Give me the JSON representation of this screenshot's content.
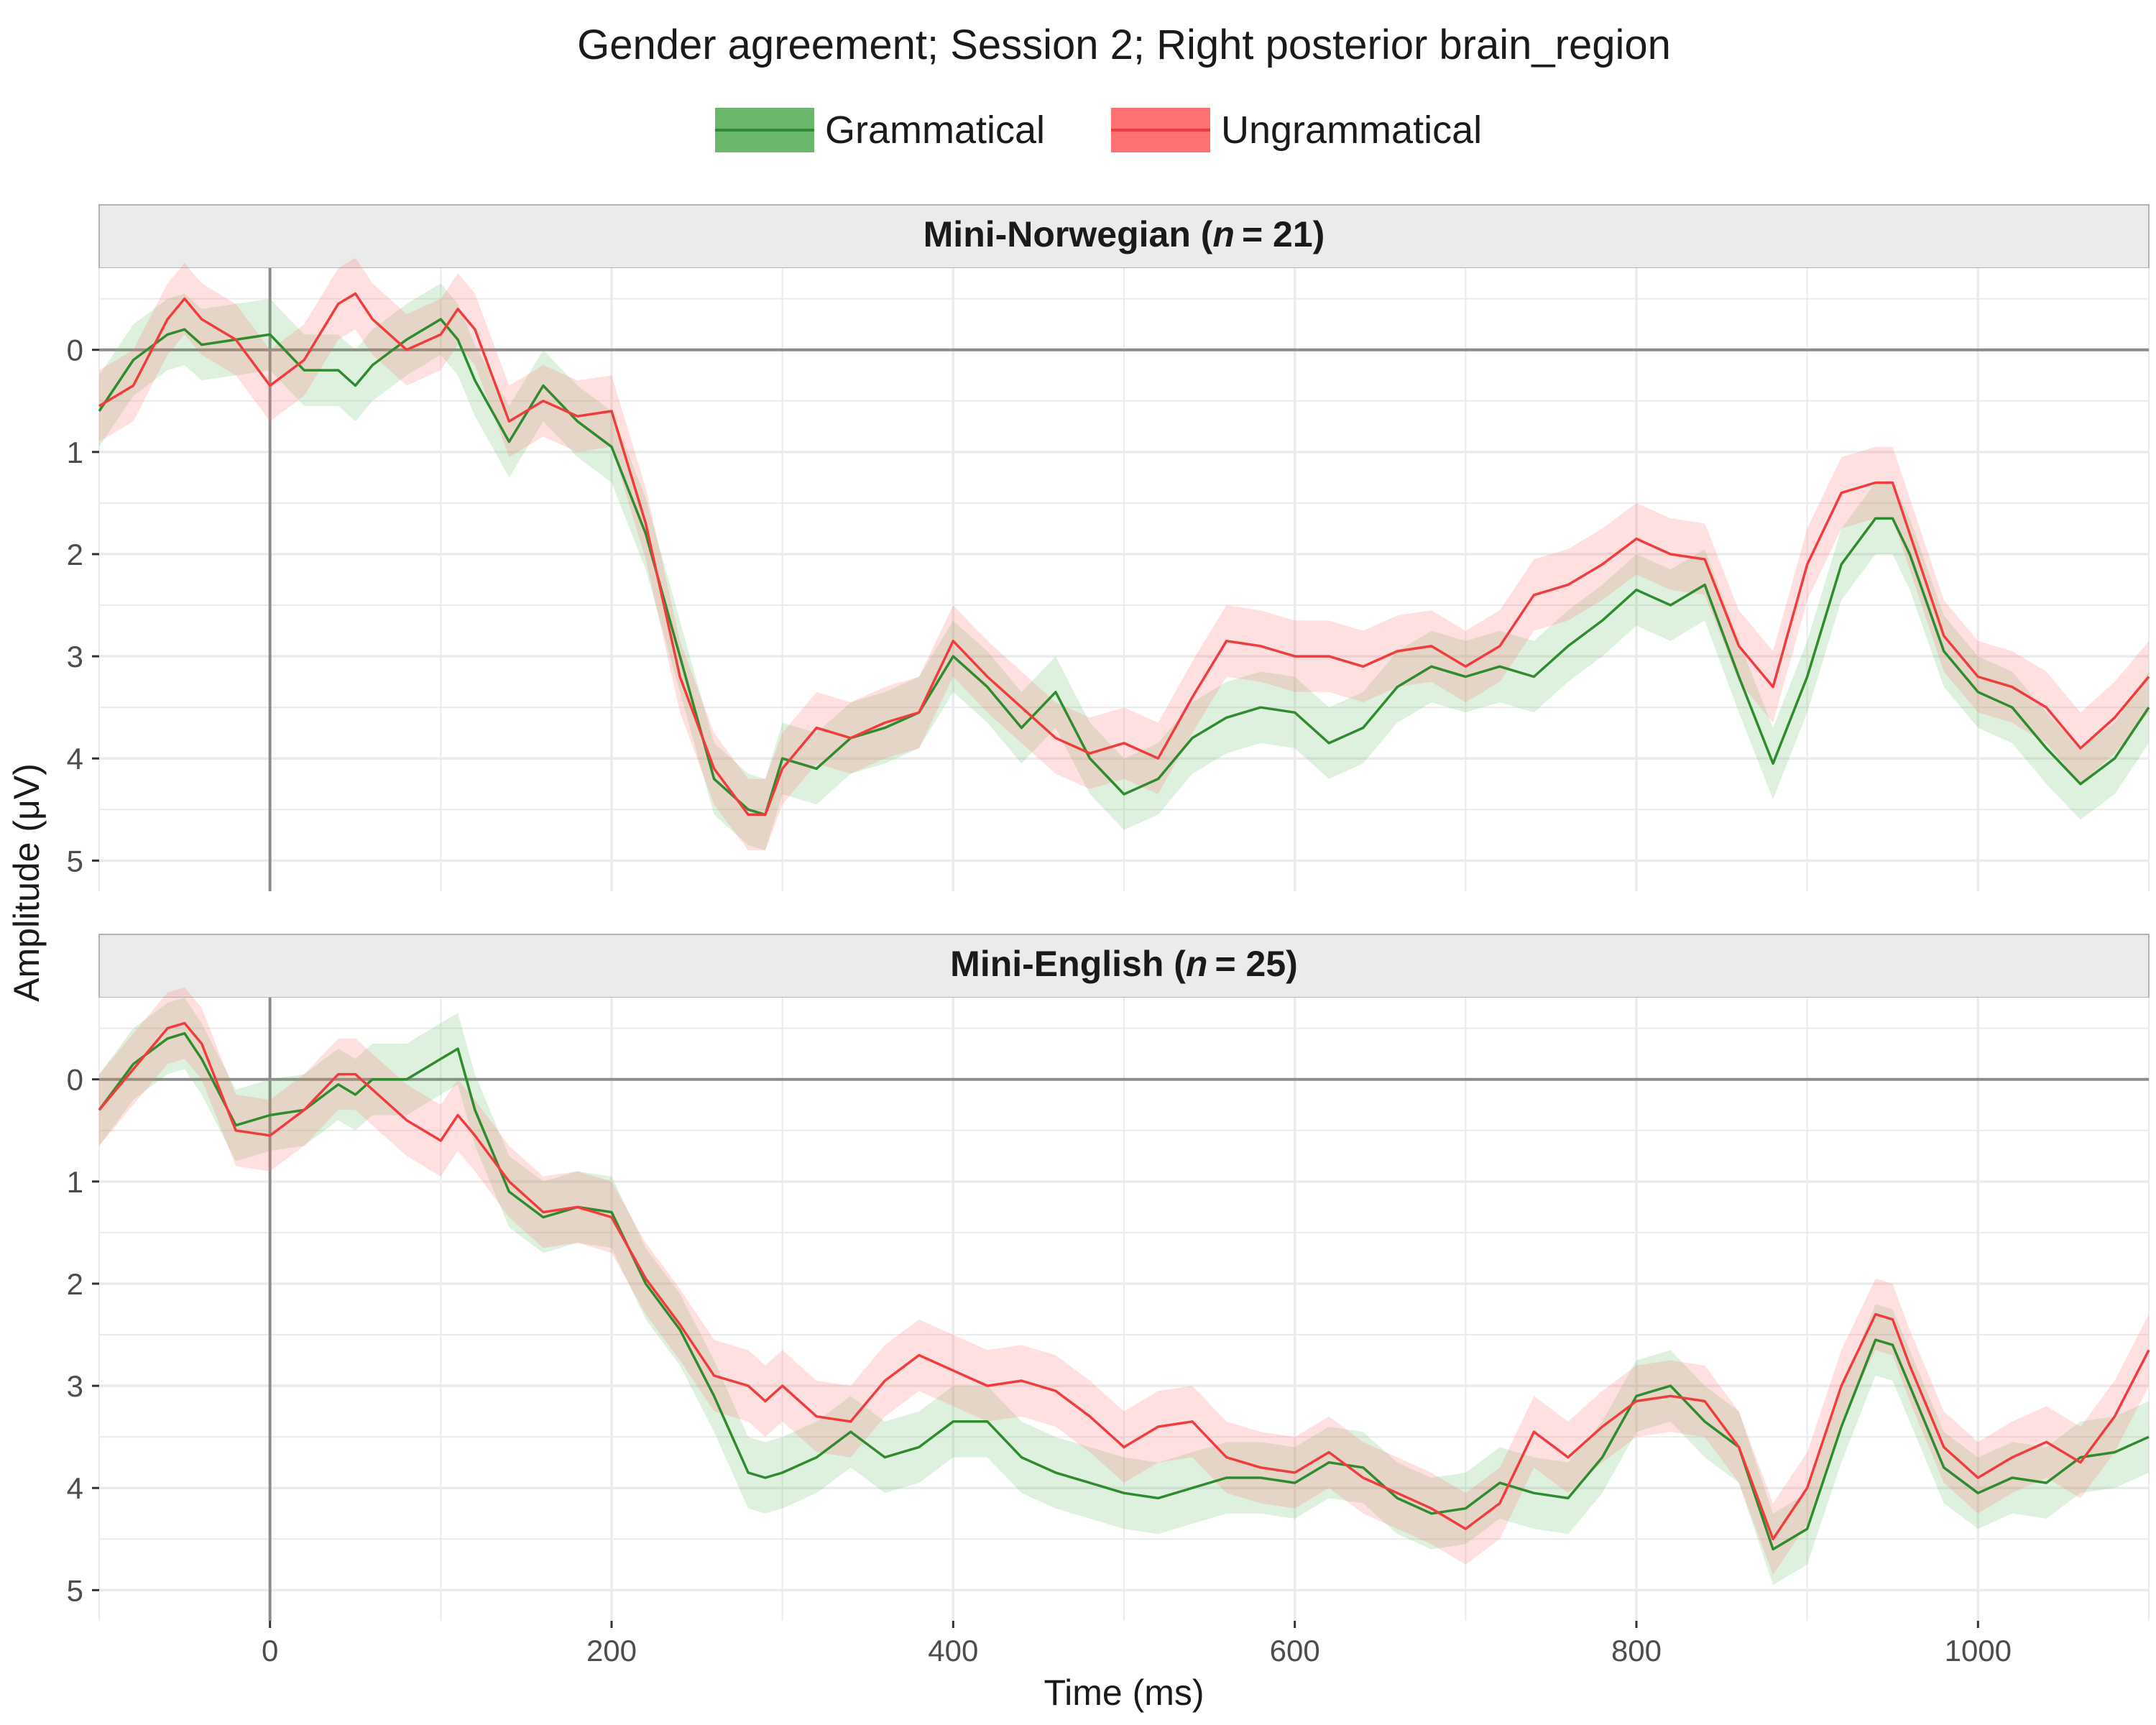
{
  "chart_data": {
    "type": "line",
    "title": "Gender agreement; Session 2; Right posterior brain_region",
    "xlabel": "Time (ms)",
    "ylabel": "Amplitude (μV)",
    "xlim": [
      -100,
      1100
    ],
    "ylim": [
      -0.8,
      5.3
    ],
    "y_reversed": true,
    "grid": true,
    "legend_position": "top",
    "x_ticks": [
      0,
      200,
      400,
      600,
      800,
      1000
    ],
    "y_ticks": [
      0,
      1,
      2,
      3,
      4,
      5
    ],
    "series_meta": [
      {
        "name": "Grammatical",
        "color": "#2e8b2e",
        "ribbon_color": "#5cb85c"
      },
      {
        "name": "Ungrammatical",
        "color": "#f03c3c",
        "ribbon_color": "#ff7070"
      }
    ],
    "band_halfwidth_uv": 0.35,
    "panels": [
      {
        "label": "Mini-Norwegian",
        "n_label": "n",
        "n_value": "= 21)",
        "prefix": "Mini-Norwegian (",
        "x": [
          -100,
          -80,
          -60,
          -50,
          -40,
          -20,
          0,
          20,
          40,
          50,
          60,
          80,
          100,
          110,
          120,
          140,
          160,
          180,
          200,
          220,
          240,
          260,
          280,
          290,
          300,
          320,
          340,
          360,
          380,
          400,
          420,
          440,
          460,
          480,
          500,
          520,
          540,
          560,
          580,
          600,
          620,
          640,
          660,
          680,
          700,
          720,
          740,
          760,
          780,
          800,
          820,
          840,
          860,
          880,
          900,
          920,
          940,
          950,
          960,
          980,
          1000,
          1020,
          1040,
          1060,
          1080,
          1100
        ],
        "series": [
          {
            "name": "Grammatical",
            "values": [
              0.6,
              0.1,
              -0.15,
              -0.2,
              -0.05,
              -0.1,
              -0.15,
              0.2,
              0.2,
              0.35,
              0.15,
              -0.1,
              -0.3,
              -0.1,
              0.3,
              0.9,
              0.35,
              0.7,
              0.95,
              1.8,
              3.0,
              4.2,
              4.5,
              4.55,
              4.0,
              4.1,
              3.8,
              3.7,
              3.55,
              3.0,
              3.3,
              3.7,
              3.35,
              4.0,
              4.35,
              4.2,
              3.8,
              3.6,
              3.5,
              3.55,
              3.85,
              3.7,
              3.3,
              3.1,
              3.2,
              3.1,
              3.2,
              2.9,
              2.65,
              2.35,
              2.5,
              2.3,
              3.2,
              4.05,
              3.2,
              2.1,
              1.65,
              1.65,
              2.0,
              2.95,
              3.35,
              3.5,
              3.9,
              4.25,
              4.0,
              3.5
            ]
          },
          {
            "name": "Ungrammatical",
            "values": [
              0.55,
              0.35,
              -0.3,
              -0.5,
              -0.3,
              -0.1,
              0.35,
              0.1,
              -0.45,
              -0.55,
              -0.3,
              0.0,
              -0.15,
              -0.4,
              -0.2,
              0.7,
              0.5,
              0.65,
              0.6,
              1.7,
              3.2,
              4.1,
              4.55,
              4.55,
              4.1,
              3.7,
              3.8,
              3.65,
              3.55,
              2.85,
              3.2,
              3.5,
              3.8,
              3.95,
              3.85,
              4.0,
              3.4,
              2.85,
              2.9,
              3.0,
              3.0,
              3.1,
              2.95,
              2.9,
              3.1,
              2.9,
              2.4,
              2.3,
              2.1,
              1.85,
              2.0,
              2.05,
              2.9,
              3.3,
              2.1,
              1.4,
              1.3,
              1.3,
              1.8,
              2.8,
              3.2,
              3.3,
              3.5,
              3.9,
              3.6,
              3.2
            ]
          }
        ]
      },
      {
        "label": "Mini-English",
        "n_label": "n",
        "n_value": "= 25)",
        "prefix": "Mini-English (",
        "x": [
          -100,
          -80,
          -60,
          -50,
          -40,
          -20,
          0,
          20,
          40,
          50,
          60,
          80,
          100,
          110,
          120,
          140,
          160,
          180,
          200,
          220,
          240,
          260,
          280,
          290,
          300,
          320,
          340,
          360,
          380,
          400,
          420,
          440,
          460,
          480,
          500,
          520,
          540,
          560,
          580,
          600,
          620,
          640,
          660,
          680,
          700,
          720,
          740,
          760,
          780,
          800,
          820,
          840,
          860,
          880,
          900,
          920,
          940,
          950,
          960,
          980,
          1000,
          1020,
          1040,
          1060,
          1080,
          1100
        ],
        "series": [
          {
            "name": "Grammatical",
            "values": [
              0.3,
              -0.15,
              -0.4,
              -0.45,
              -0.2,
              0.45,
              0.35,
              0.3,
              0.05,
              0.15,
              0.0,
              0.0,
              -0.2,
              -0.3,
              0.3,
              1.1,
              1.35,
              1.25,
              1.3,
              2.0,
              2.45,
              3.1,
              3.85,
              3.9,
              3.85,
              3.7,
              3.45,
              3.7,
              3.6,
              3.35,
              3.35,
              3.7,
              3.85,
              3.95,
              4.05,
              4.1,
              4.0,
              3.9,
              3.9,
              3.95,
              3.75,
              3.8,
              4.1,
              4.25,
              4.2,
              3.95,
              4.05,
              4.1,
              3.7,
              3.1,
              3.0,
              3.35,
              3.6,
              4.6,
              4.4,
              3.4,
              2.55,
              2.6,
              3.0,
              3.8,
              4.05,
              3.9,
              3.95,
              3.7,
              3.65,
              3.5
            ]
          },
          {
            "name": "Ungrammatical",
            "values": [
              0.3,
              -0.1,
              -0.5,
              -0.55,
              -0.35,
              0.5,
              0.55,
              0.3,
              -0.05,
              -0.05,
              0.1,
              0.4,
              0.6,
              0.35,
              0.55,
              1.0,
              1.3,
              1.25,
              1.35,
              1.95,
              2.4,
              2.9,
              3.0,
              3.15,
              3.0,
              3.3,
              3.35,
              2.95,
              2.7,
              2.85,
              3.0,
              2.95,
              3.05,
              3.3,
              3.6,
              3.4,
              3.35,
              3.7,
              3.8,
              3.85,
              3.65,
              3.9,
              4.05,
              4.2,
              4.4,
              4.15,
              3.45,
              3.7,
              3.4,
              3.15,
              3.1,
              3.15,
              3.6,
              4.5,
              4.0,
              3.0,
              2.3,
              2.35,
              2.8,
              3.6,
              3.9,
              3.7,
              3.55,
              3.75,
              3.3,
              2.65
            ]
          }
        ]
      }
    ]
  }
}
